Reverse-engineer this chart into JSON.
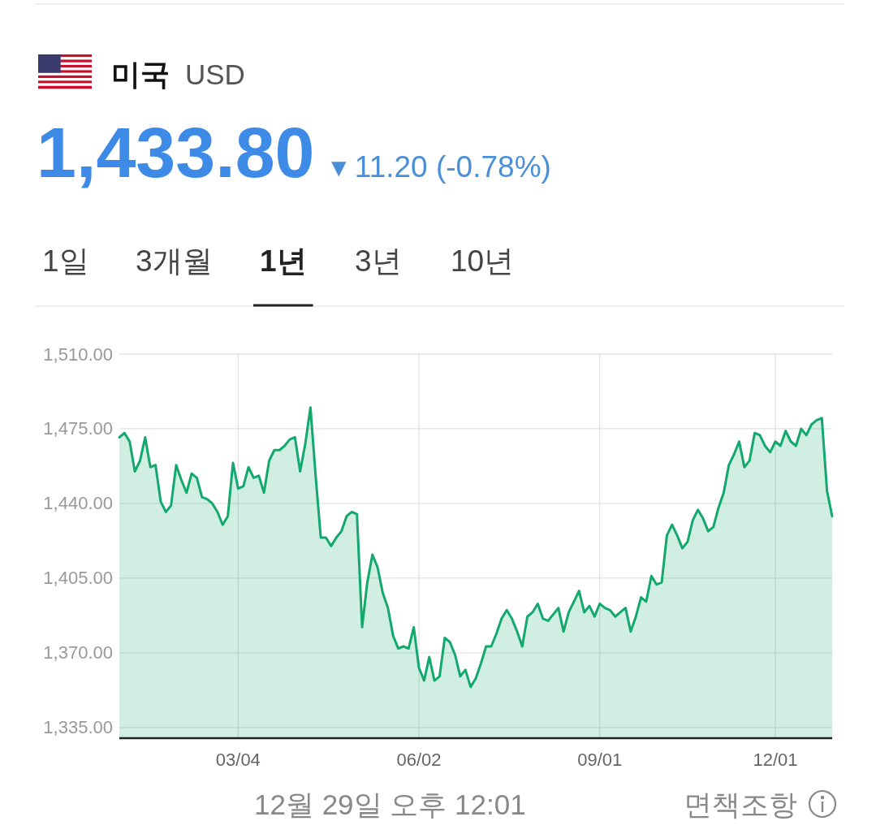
{
  "chart_data": {
    "type": "area",
    "title": "미국",
    "subtitle": "USD",
    "annotations": [
      "1,433.80",
      "▾ 11.20 (-0.78%)",
      "1일",
      "3개월",
      "1년",
      "3년",
      "10년",
      "12월 29일 오후 12:01",
      "면책조항"
    ],
    "categories": [
      null,
      null,
      null,
      null,
      null,
      null,
      null,
      null,
      null,
      null,
      null,
      null,
      null,
      null,
      null,
      null,
      null,
      null,
      null,
      null,
      null,
      null,
      null,
      "03/04",
      null,
      null,
      null,
      null,
      null,
      null,
      null,
      null,
      null,
      null,
      null,
      null,
      null,
      null,
      null,
      null,
      null,
      null,
      null,
      null,
      null,
      null,
      null,
      null,
      null,
      null,
      null,
      null,
      null,
      null,
      null,
      null,
      null,
      null,
      "06/02",
      null,
      null,
      null,
      null,
      null,
      null,
      null,
      null,
      null,
      null,
      null,
      null,
      null,
      null,
      null,
      null,
      null,
      null,
      null,
      null,
      null,
      null,
      null,
      null,
      null,
      null,
      null,
      null,
      null,
      null,
      null,
      null,
      null,
      null,
      "09/01",
      null,
      null,
      null,
      null,
      null,
      null,
      null,
      null,
      null,
      null,
      null,
      null,
      null,
      null,
      null,
      null,
      null,
      null,
      null,
      null,
      null,
      null,
      null,
      null,
      null,
      null,
      null,
      null,
      null,
      null,
      null,
      null,
      null,
      "12/01",
      null,
      null,
      null,
      null,
      null,
      null,
      null,
      null,
      null,
      null,
      null
    ],
    "values": [
      1471,
      1473,
      1469,
      1455,
      1460,
      1471,
      1457,
      1458,
      1441,
      1436,
      1439,
      1458,
      1451,
      1445,
      1454,
      1452,
      1443,
      1442,
      1440,
      1436,
      1430,
      1434,
      1459,
      1447,
      1448,
      1457,
      1452,
      1453,
      1445,
      1460,
      1465,
      1465,
      1467,
      1470,
      1471,
      1455,
      1468,
      1485,
      1453,
      1424,
      1424,
      1420,
      1424,
      1427,
      1434,
      1436,
      1435,
      1382,
      1403,
      1416,
      1410,
      1398,
      1391,
      1378,
      1372,
      1373,
      1372,
      1382,
      1363,
      1357,
      1368,
      1357,
      1359,
      1377,
      1375,
      1369,
      1359,
      1362,
      1354,
      1358,
      1365,
      1373,
      1373,
      1379,
      1386,
      1390,
      1386,
      1380,
      1373,
      1387,
      1389,
      1393,
      1386,
      1385,
      1388,
      1391,
      1380,
      1389,
      1394,
      1399,
      1389,
      1392,
      1387,
      1393,
      1391,
      1390,
      1387,
      1389,
      1391,
      1380,
      1387,
      1396,
      1394,
      1406,
      1402,
      1403,
      1425,
      1430,
      1425,
      1419,
      1422,
      1432,
      1437,
      1433,
      1427,
      1429,
      1438,
      1445,
      1458,
      1463,
      1469,
      1457,
      1460,
      1473,
      1472,
      1467,
      1464,
      1469,
      1467,
      1474,
      1469,
      1467,
      1475,
      1472,
      1477,
      1479,
      1480,
      1446,
      1434
    ],
    "color": "#13a86e",
    "ylim": [
      1330,
      1510
    ],
    "yticks": [
      {
        "value": 1335,
        "label": "1,335.00"
      },
      {
        "value": 1370,
        "label": "1,370.00"
      },
      {
        "value": 1405,
        "label": "1,405.00"
      },
      {
        "value": 1440,
        "label": "1,440.00"
      },
      {
        "value": 1475,
        "label": "1,475.00"
      },
      {
        "value": 1510,
        "label": "1,510.00"
      }
    ],
    "grid": true
  }
}
